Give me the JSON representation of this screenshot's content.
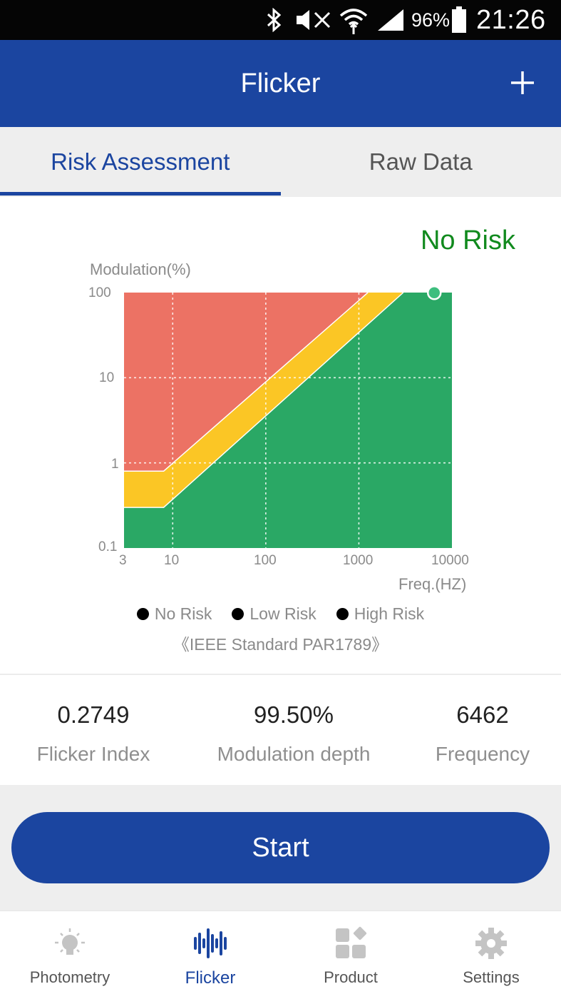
{
  "status_bar": {
    "battery": "96%",
    "time": "21:26"
  },
  "header": {
    "title": "Flicker"
  },
  "tabs": [
    {
      "label": "Risk Assessment",
      "active": true
    },
    {
      "label": "Raw Data",
      "active": false
    }
  ],
  "chart": {
    "status": "No Risk"
  },
  "chart_data": {
    "type": "area",
    "title": "",
    "ylabel": "Modulation(%)",
    "xlabel": "Freq.(HZ)",
    "x_scale": "log",
    "y_scale": "log",
    "xlim": [
      3,
      10000
    ],
    "ylim": [
      0.1,
      100
    ],
    "x_ticks": [
      "3",
      "10",
      "100",
      "1000",
      "10000"
    ],
    "y_ticks": [
      "100",
      "10",
      "1",
      "0.1"
    ],
    "grid": true,
    "regions": [
      {
        "name": "High Risk",
        "color": "#ec7264",
        "boundary_x": [
          3,
          8,
          1250
        ],
        "boundary_y": [
          0.8,
          0.8,
          100
        ]
      },
      {
        "name": "Low Risk",
        "color": "#fbc625",
        "boundary_x": [
          3,
          8,
          3000
        ],
        "boundary_y": [
          0.3,
          0.3,
          100
        ]
      },
      {
        "name": "No Risk",
        "color": "#2aa865"
      }
    ],
    "point": {
      "x": 6462,
      "y": 99.5
    },
    "legend": [
      "No Risk",
      "Low Risk",
      "High Risk"
    ],
    "legend_position": "bottom"
  },
  "standard": "《IEEE Standard PAR1789》",
  "metrics": [
    {
      "value": "0.2749",
      "label": "Flicker Index"
    },
    {
      "value": "99.50%",
      "label": "Modulation depth"
    },
    {
      "value": "6462",
      "label": "Frequency"
    }
  ],
  "start_button": {
    "label": "Start"
  },
  "nav": [
    {
      "label": "Photometry",
      "icon": "bulb-icon",
      "active": false
    },
    {
      "label": "Flicker",
      "icon": "waveform-icon",
      "active": true
    },
    {
      "label": "Product",
      "icon": "grid-icon",
      "active": false
    },
    {
      "label": "Settings",
      "icon": "gear-icon",
      "active": false
    }
  ],
  "colors": {
    "primary": "#1b45a0",
    "no_risk_text": "#118a1e"
  }
}
